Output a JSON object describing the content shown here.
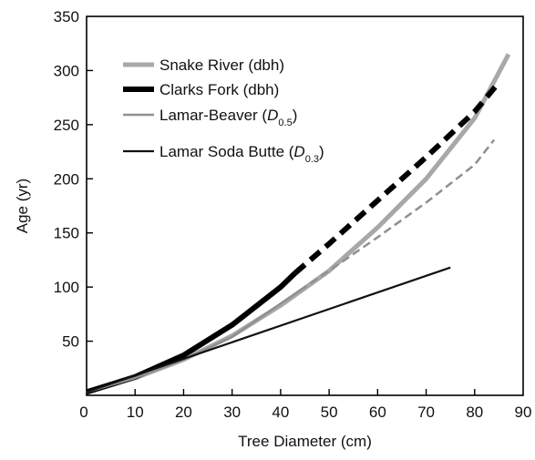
{
  "chart_data": {
    "type": "line",
    "title": "",
    "xlabel": "Tree Diameter (cm)",
    "ylabel": "Age (yr)",
    "xlim": [
      0,
      90
    ],
    "ylim": [
      0,
      350
    ],
    "x_ticks": [
      0,
      10,
      20,
      30,
      40,
      50,
      60,
      70,
      80,
      90
    ],
    "y_ticks": [
      0,
      50,
      100,
      150,
      200,
      250,
      300,
      350
    ],
    "x_tick_labels": [
      "0",
      "10",
      "20",
      "30",
      "40",
      "50",
      "60",
      "70",
      "80",
      "90"
    ],
    "y_tick_labels": [
      "",
      "50",
      "100",
      "150",
      "200",
      "250",
      "300",
      "350"
    ],
    "grid": false,
    "legend_position": "top-left",
    "series": [
      {
        "name": "Snake River (dbh)",
        "legend_main": "Snake River (dbh)",
        "legend_sub": "",
        "color": "#a8a8a8",
        "style": "solid",
        "x": [
          0,
          10,
          20,
          30,
          40,
          50,
          60,
          70,
          80,
          87
        ],
        "values": [
          3,
          16,
          33,
          55,
          83,
          115,
          155,
          200,
          256,
          315
        ]
      },
      {
        "name": "Clarks Fork (dbh)",
        "legend_main": "Clarks Fork (dbh)",
        "legend_sub": "",
        "color": "#000000",
        "style": "solid-then-dashed",
        "solid_until_x": 43,
        "x": [
          0,
          10,
          20,
          30,
          40,
          43,
          50,
          60,
          70,
          80,
          85
        ],
        "values": [
          3,
          17,
          37,
          65,
          100,
          113,
          140,
          180,
          220,
          262,
          289
        ]
      },
      {
        "name": "Lamar-Beaver (D0.5)",
        "legend_main": "Lamar-Beaver (",
        "legend_italic": "D",
        "legend_sub": "0.5",
        "legend_close": ")",
        "color": "#909090",
        "style": "solid-then-dashed",
        "solid_until_x": 44,
        "x": [
          0,
          10,
          20,
          30,
          44,
          50,
          60,
          70,
          80,
          84
        ],
        "values": [
          3,
          16,
          33,
          54,
          97,
          115,
          146,
          178,
          213,
          236
        ]
      },
      {
        "name": "Lamar Soda Butte (D0.3)",
        "legend_main": "Lamar Soda Butte (",
        "legend_italic": "D",
        "legend_sub": "0.3",
        "legend_close": ")",
        "color": "#111111",
        "style": "solid",
        "x": [
          0,
          75
        ],
        "values": [
          3,
          118
        ]
      }
    ]
  }
}
